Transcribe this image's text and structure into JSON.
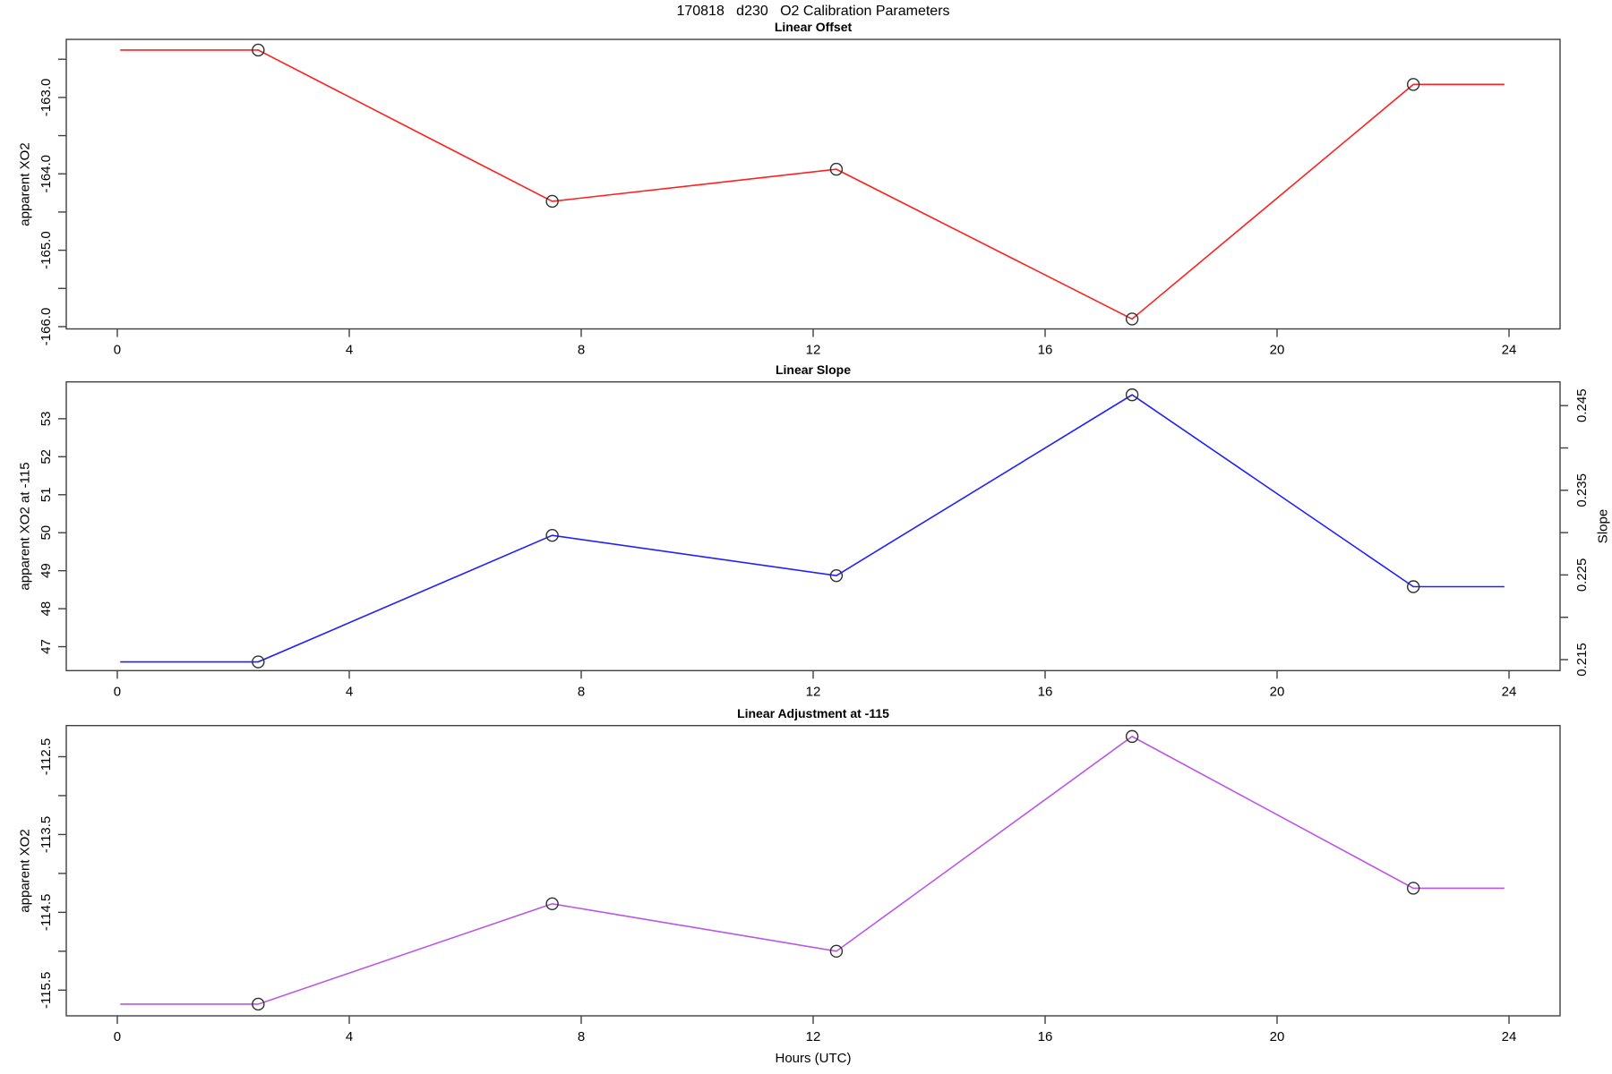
{
  "figure": {
    "title": "170818   d230   O2 Calibration Parameters",
    "x_axis_label": "Hours (UTC)",
    "axis_color": "#404040",
    "marker_outline_color": "#303030",
    "background_color": "#ffffff"
  },
  "chart_data": [
    {
      "type": "line",
      "title": "Linear Offset",
      "ylabel": "apparent XO2",
      "line_color": "#ff2020",
      "marker": "open-circle",
      "x": [
        2.43,
        7.5,
        12.4,
        17.5,
        22.35
      ],
      "y": [
        -162.38,
        -164.36,
        -163.94,
        -165.9,
        -162.83
      ],
      "line_start_x": 0.05,
      "line_end_x": 23.92,
      "xlim": [
        -0.88,
        24.88
      ],
      "ylim_top": -162.24,
      "ylim_bottom": -166.03,
      "xticks": [
        0,
        4,
        8,
        12,
        16,
        20,
        24
      ],
      "xtick_labels": [
        "0",
        "4",
        "8",
        "12",
        "16",
        "20",
        "24"
      ],
      "ytick_values": [
        -163.0,
        -164.0,
        -165.0,
        -166.0
      ],
      "ytick_labels": [
        "-163.0",
        "-164.0",
        "-165.0",
        "-166.0"
      ],
      "ytick_minor": [
        -162.5,
        -163.5,
        -164.5,
        -165.5
      ]
    },
    {
      "type": "line",
      "title": "Linear Slope",
      "ylabel": "apparent XO2 at -115",
      "line_color": "#2020ff",
      "marker": "open-circle",
      "x": [
        2.43,
        7.5,
        12.4,
        17.5,
        22.35
      ],
      "y": [
        46.6,
        49.93,
        48.87,
        53.63,
        48.58
      ],
      "y_right_slope": [
        0.2146,
        0.2296,
        0.2248,
        0.2464,
        0.2235
      ],
      "line_start_x": 0.05,
      "line_end_x": 23.92,
      "xlim": [
        -0.88,
        24.88
      ],
      "ylim_top": 53.97,
      "ylim_bottom": 46.37,
      "xticks": [
        0,
        4,
        8,
        12,
        16,
        20,
        24
      ],
      "xtick_labels": [
        "0",
        "4",
        "8",
        "12",
        "16",
        "20",
        "24"
      ],
      "ytick_values": [
        47,
        48,
        49,
        50,
        51,
        52,
        53
      ],
      "ytick_labels": [
        "47",
        "48",
        "49",
        "50",
        "51",
        "52",
        "53"
      ],
      "ytick_minor": [],
      "right_axis": {
        "label": "Slope",
        "lim_top": 0.2478,
        "lim_bottom": 0.2137,
        "tick_values": [
          0.215,
          0.225,
          0.235,
          0.245
        ],
        "tick_labels": [
          "0.215",
          "0.225",
          "0.235",
          "0.245"
        ],
        "tick_minor": [
          0.22,
          0.23,
          0.24
        ]
      }
    },
    {
      "type": "line",
      "title": "Linear Adjustment at -115",
      "ylabel": "apparent XO2",
      "line_color": "#bb55e8",
      "marker": "open-circle",
      "x": [
        2.43,
        7.5,
        12.4,
        17.5,
        22.35
      ],
      "y": [
        -115.68,
        -114.39,
        -115.0,
        -112.24,
        -114.19
      ],
      "line_start_x": 0.05,
      "line_end_x": 23.92,
      "xlim": [
        -0.88,
        24.88
      ],
      "ylim_top": -112.1,
      "ylim_bottom": -115.83,
      "xticks": [
        0,
        4,
        8,
        12,
        16,
        20,
        24
      ],
      "xtick_labels": [
        "0",
        "4",
        "8",
        "12",
        "16",
        "20",
        "24"
      ],
      "ytick_values": [
        -112.5,
        -113.5,
        -114.5,
        -115.5
      ],
      "ytick_labels": [
        "-112.5",
        "-113.5",
        "-114.5",
        "-115.5"
      ],
      "ytick_minor": [
        -113.0,
        -114.0,
        -115.0
      ]
    }
  ]
}
